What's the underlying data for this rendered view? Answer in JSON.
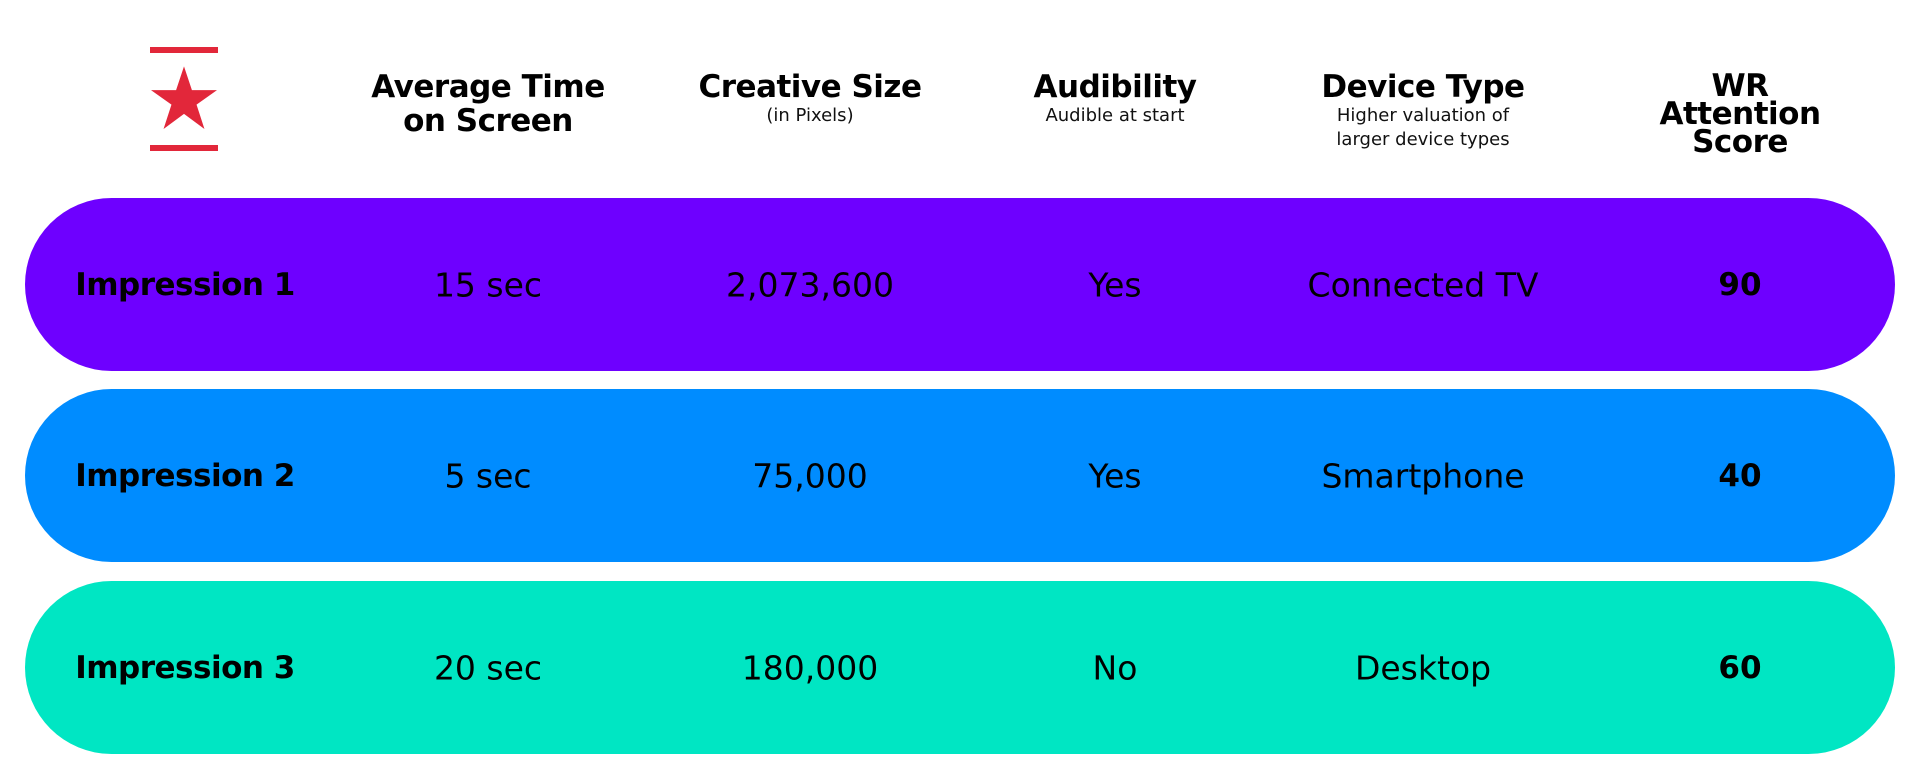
{
  "brand": {
    "logo_icon": "star-icon",
    "accent_color": "#e2273a"
  },
  "columns": [
    {
      "title": "Average Time on Screen",
      "title_lines": [
        "Average Time",
        "on Screen"
      ],
      "subtitle": ""
    },
    {
      "title": "Creative Size",
      "title_lines": [
        "Creative Size"
      ],
      "subtitle": "(in Pixels)"
    },
    {
      "title": "Audibility",
      "title_lines": [
        "Audibility"
      ],
      "subtitle": "Audible at start"
    },
    {
      "title": "Device Type",
      "title_lines": [
        "Device Type"
      ],
      "subtitle": "Higher valuation of larger device types",
      "subtitle_lines": [
        "Higher valuation of",
        "larger device types"
      ]
    },
    {
      "title": "WR Attention Score",
      "title_lines": [
        "WR",
        "Attention",
        "Score"
      ],
      "subtitle": ""
    }
  ],
  "rows": [
    {
      "label": "Impression 1",
      "time": "15 sec",
      "size": "2,073,600",
      "audible": "Yes",
      "device": "Connected TV",
      "score": "90",
      "color": "#6e00ff"
    },
    {
      "label": "Impression 2",
      "time": "5 sec",
      "size": "75,000",
      "audible": "Yes",
      "device": "Smartphone",
      "score": "40",
      "color": "#008cff"
    },
    {
      "label": "Impression 3",
      "time": "20 sec",
      "size": "180,000",
      "audible": "No",
      "device": "Desktop",
      "score": "60",
      "color": "#00e6c3"
    }
  ]
}
